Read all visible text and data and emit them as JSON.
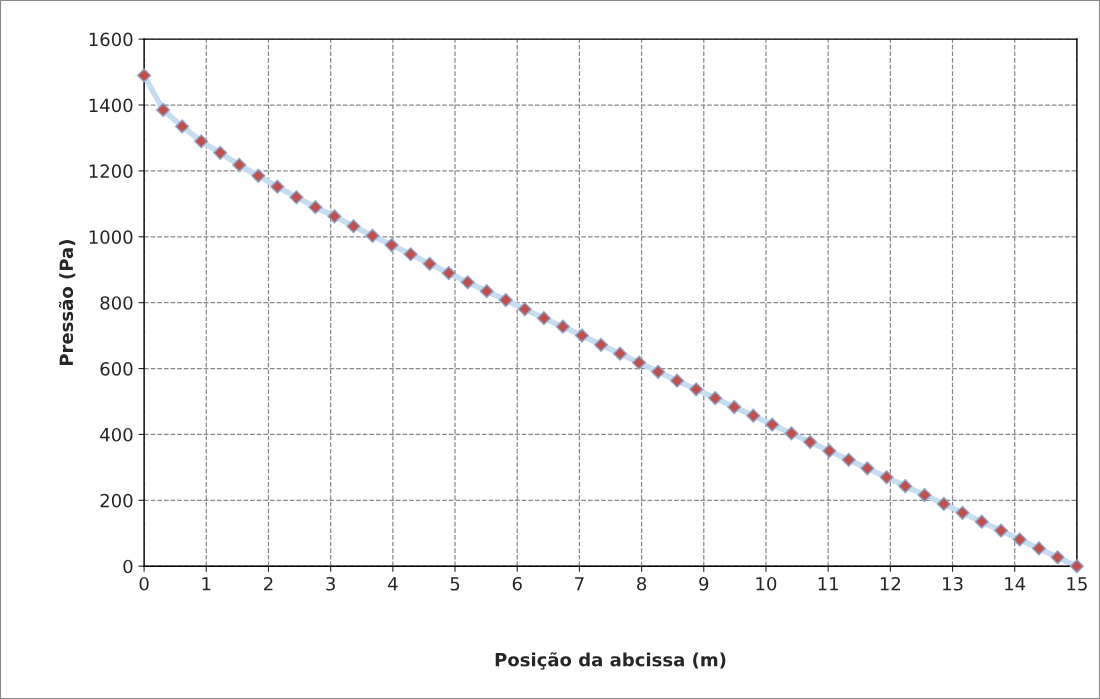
{
  "chart_data": {
    "type": "line",
    "xlabel": "Posição da abcissa (m)",
    "ylabel": "Pressão (Pa)",
    "x": [
      0,
      0.306,
      0.612,
      0.918,
      1.224,
      1.531,
      1.837,
      2.143,
      2.449,
      2.755,
      3.061,
      3.367,
      3.673,
      3.98,
      4.286,
      4.592,
      4.898,
      5.204,
      5.51,
      5.816,
      6.122,
      6.429,
      6.735,
      7.041,
      7.347,
      7.653,
      7.959,
      8.265,
      8.571,
      8.878,
      9.184,
      9.49,
      9.796,
      10.1,
      10.41,
      10.71,
      11.02,
      11.33,
      11.63,
      11.94,
      12.24,
      12.55,
      12.86,
      13.16,
      13.47,
      13.78,
      14.08,
      14.39,
      14.69,
      15
    ],
    "series": [
      {
        "color": "#c0504d",
        "values": [
          1490,
          1385,
          1335,
          1290,
          1255,
          1218,
          1185,
          1152,
          1120,
          1090,
          1062,
          1032,
          1003,
          975,
          947,
          918,
          890,
          862,
          835,
          808,
          780,
          753,
          727,
          700,
          672,
          645,
          618,
          590,
          563,
          537,
          510,
          483,
          457,
          430,
          403,
          377,
          350,
          323,
          297,
          270,
          243,
          216,
          189,
          162,
          135,
          108,
          81,
          54,
          27,
          0
        ]
      }
    ],
    "xlim": [
      0,
      15
    ],
    "ylim": [
      0,
      1600
    ],
    "xticks": [
      0,
      1,
      2,
      3,
      4,
      5,
      6,
      7,
      8,
      9,
      10,
      11,
      12,
      13,
      14,
      15
    ],
    "yticks": [
      0,
      200,
      400,
      600,
      800,
      1000,
      1200,
      1400,
      1600
    ],
    "grid": true,
    "marker": "diamond",
    "line_style": "solid"
  }
}
